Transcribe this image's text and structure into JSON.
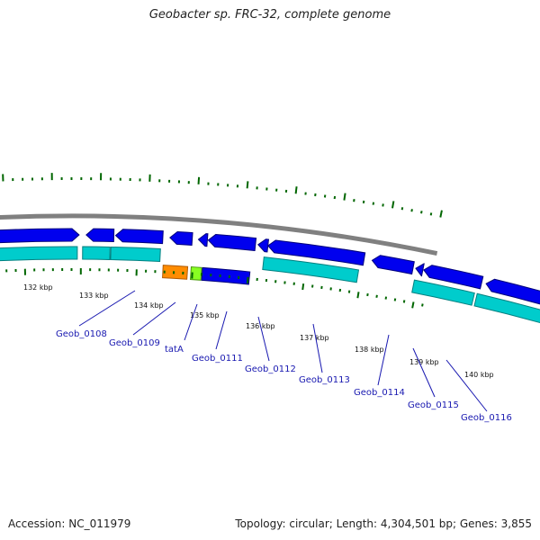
{
  "title": "Geobacter sp. FRC-32, complete genome",
  "accession": "Accession: NC_011979",
  "summary": "Topology: circular; Length: 4,304,501 bp; Genes: 3,855",
  "colors": {
    "backbone": "#808080",
    "cds_forward": "#0000ee",
    "cds_reverse": "#00cccc",
    "tick": "#006600",
    "label": "#1818b0",
    "orange_gene": "#ff8c00",
    "green_gene": "#88ff22"
  },
  "position_labels": [
    "132 kbp",
    "133 kbp",
    "134 kbp",
    "135 kbp",
    "136 kbp",
    "137 kbp",
    "138 kbp",
    "139 kbp",
    "140 kbp"
  ],
  "gene_labels": [
    "Geob_0108",
    "Geob_0109",
    "tatA",
    "Geob_0111",
    "Geob_0112",
    "Geob_0113",
    "Geob_0114",
    "Geob_0115",
    "Geob_0116"
  ]
}
